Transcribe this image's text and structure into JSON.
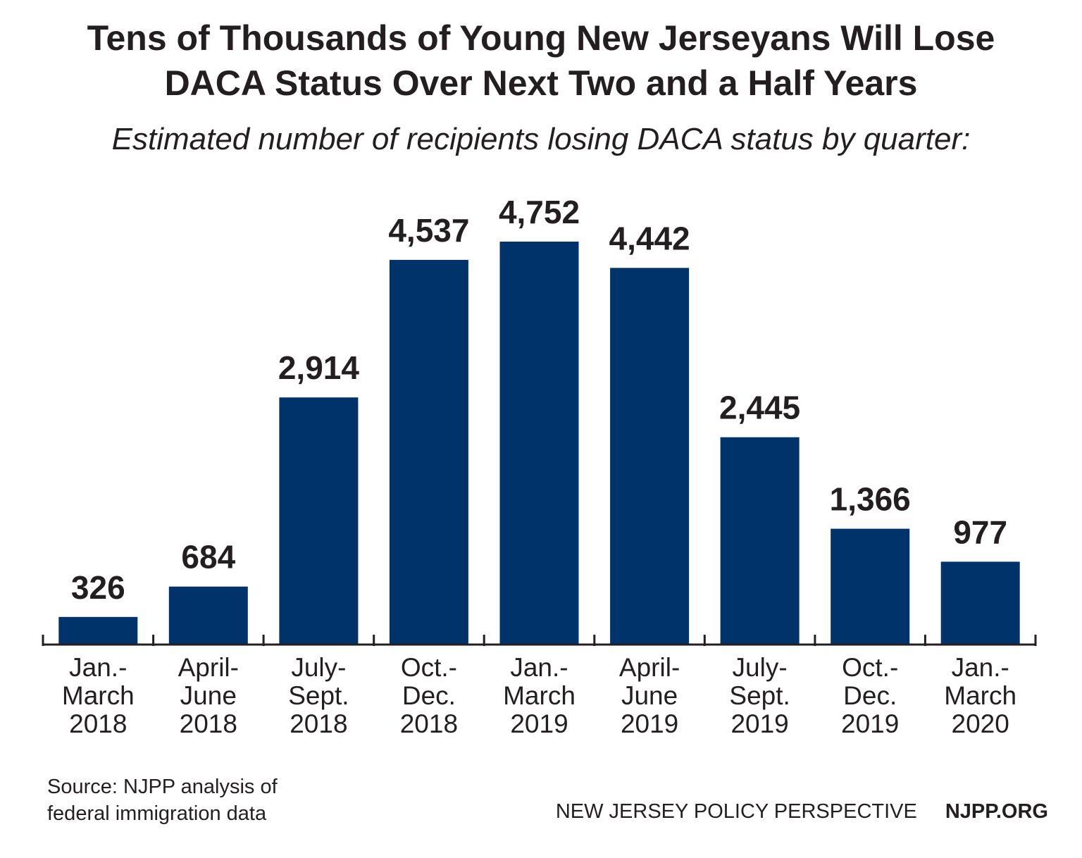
{
  "title_line1": "Tens of Thousands of Young New Jerseyans Will Lose",
  "title_line2": "DACA Status Over Next Two and a Half Years",
  "subtitle": "Estimated number of recipients losing DACA status by quarter:",
  "source_line1": "Source: NJPP analysis of",
  "source_line2": "federal immigration data",
  "org_name": "NEW JERSEY POLICY PERSPECTIVE",
  "org_url": "NJPP.ORG",
  "colors": {
    "bar": "#00336a",
    "text": "#231f20",
    "axis": "#231f20"
  },
  "chart_data": {
    "type": "bar",
    "categories": [
      [
        "Jan.-",
        "March",
        "2018"
      ],
      [
        "April-",
        "June",
        "2018"
      ],
      [
        "July-",
        "Sept.",
        "2018"
      ],
      [
        "Oct.-",
        "Dec.",
        "2018"
      ],
      [
        "Jan.-",
        "March",
        "2019"
      ],
      [
        "April-",
        "June",
        "2019"
      ],
      [
        "July-",
        "Sept.",
        "2019"
      ],
      [
        "Oct.-",
        "Dec.",
        "2019"
      ],
      [
        "Jan.-",
        "March",
        "2020"
      ]
    ],
    "values": [
      326,
      684,
      2914,
      4537,
      4752,
      4442,
      2445,
      1366,
      977
    ],
    "value_labels": [
      "326",
      "684",
      "2,914",
      "4,537",
      "4,752",
      "4,442",
      "2,445",
      "1,366",
      "977"
    ],
    "title": "Tens of Thousands of Young New Jerseyans Will Lose DACA Status Over Next Two and a Half Years",
    "subtitle": "Estimated number of recipients losing DACA status by quarter:",
    "xlabel": "",
    "ylabel": "",
    "ylim": [
      0,
      4752
    ],
    "grid": false,
    "legend": "none"
  }
}
